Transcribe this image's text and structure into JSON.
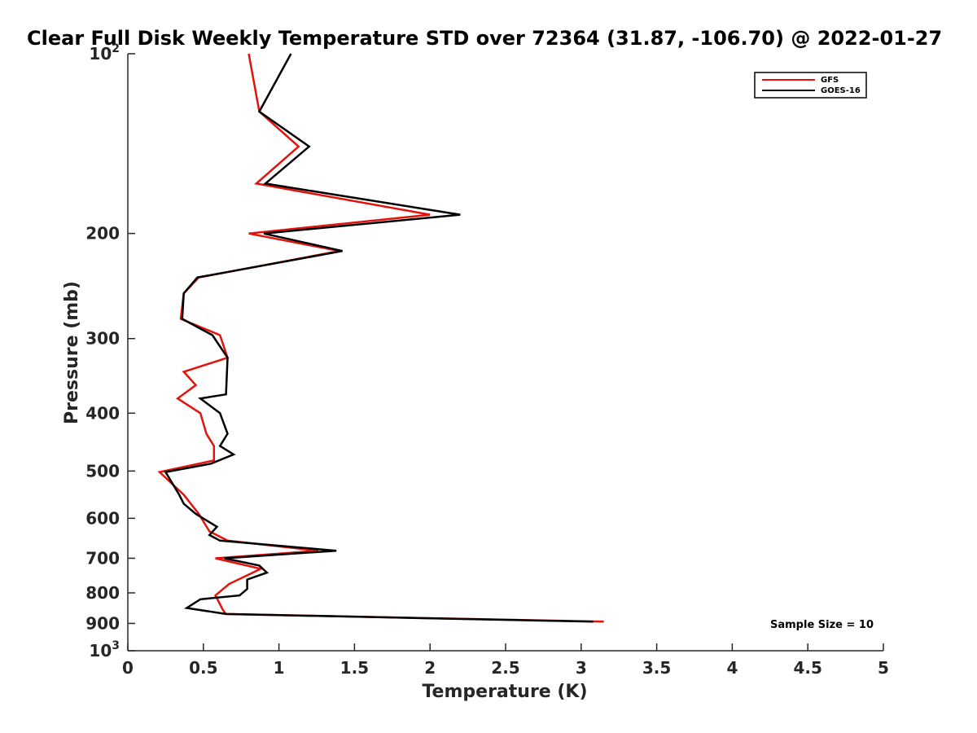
{
  "chart_data": {
    "type": "line",
    "title": "Clear Full Disk Weekly Temperature STD over 72364 (31.87, -106.70) @ 2022-01-27",
    "xlabel": "Temperature (K)",
    "ylabel": "Pressure (mb)",
    "xlim": [
      0,
      5
    ],
    "ylim": [
      100,
      1000
    ],
    "y_scale": "log",
    "y_reversed": true,
    "x_ticks": [
      "0",
      "0.5",
      "1",
      "1.5",
      "2",
      "2.5",
      "3",
      "3.5",
      "4",
      "4.5",
      "5"
    ],
    "y_ticks": [
      {
        "value": 100,
        "base": "10",
        "exp": "2"
      },
      {
        "value": 200,
        "label": "200"
      },
      {
        "value": 300,
        "label": "300"
      },
      {
        "value": 400,
        "label": "400"
      },
      {
        "value": 500,
        "label": "500"
      },
      {
        "value": 600,
        "label": "600"
      },
      {
        "value": 700,
        "label": "700"
      },
      {
        "value": 800,
        "label": "800"
      },
      {
        "value": 900,
        "label": "900"
      },
      {
        "value": 1000,
        "base": "10",
        "exp": "3"
      }
    ],
    "grid": false,
    "legend_position": "top-right",
    "annotation": "Sample Size = 10",
    "series": [
      {
        "name": "GFS",
        "color": "#e3120b",
        "points": [
          [
            0.8,
            100
          ],
          [
            0.87,
            125
          ],
          [
            1.13,
            143
          ],
          [
            0.85,
            165
          ],
          [
            2.0,
            186
          ],
          [
            0.8,
            200
          ],
          [
            1.4,
            214
          ],
          [
            0.47,
            237
          ],
          [
            0.37,
            252
          ],
          [
            0.35,
            278
          ],
          [
            0.61,
            296
          ],
          [
            0.66,
            323
          ],
          [
            0.37,
            341
          ],
          [
            0.45,
            359
          ],
          [
            0.33,
            378
          ],
          [
            0.48,
            400
          ],
          [
            0.52,
            433
          ],
          [
            0.57,
            454
          ],
          [
            0.57,
            480
          ],
          [
            0.21,
            502
          ],
          [
            0.37,
            548
          ],
          [
            0.47,
            590
          ],
          [
            0.54,
            631
          ],
          [
            0.66,
            654
          ],
          [
            1.26,
            680
          ],
          [
            0.58,
            700
          ],
          [
            0.88,
            729
          ],
          [
            0.67,
            773
          ],
          [
            0.58,
            808
          ],
          [
            0.63,
            855
          ],
          [
            0.65,
            868
          ],
          [
            3.15,
            894
          ]
        ]
      },
      {
        "name": "GOES-16",
        "color": "#000000",
        "points": [
          [
            1.08,
            100
          ],
          [
            0.87,
            125
          ],
          [
            1.2,
            143
          ],
          [
            0.91,
            165
          ],
          [
            2.2,
            186
          ],
          [
            0.9,
            200
          ],
          [
            1.42,
            214
          ],
          [
            0.46,
            237
          ],
          [
            0.37,
            252
          ],
          [
            0.36,
            278
          ],
          [
            0.56,
            296
          ],
          [
            0.66,
            323
          ],
          [
            0.65,
            372
          ],
          [
            0.48,
            378
          ],
          [
            0.61,
            400
          ],
          [
            0.66,
            433
          ],
          [
            0.61,
            454
          ],
          [
            0.7,
            469
          ],
          [
            0.55,
            486
          ],
          [
            0.25,
            502
          ],
          [
            0.34,
            548
          ],
          [
            0.37,
            567
          ],
          [
            0.45,
            590
          ],
          [
            0.59,
            620
          ],
          [
            0.54,
            640
          ],
          [
            0.61,
            654
          ],
          [
            1.38,
            680
          ],
          [
            0.64,
            700
          ],
          [
            0.87,
            720
          ],
          [
            0.92,
            740
          ],
          [
            0.79,
            760
          ],
          [
            0.79,
            788
          ],
          [
            0.74,
            808
          ],
          [
            0.48,
            820
          ],
          [
            0.39,
            848
          ],
          [
            0.65,
            868
          ],
          [
            3.08,
            894
          ]
        ]
      }
    ]
  }
}
